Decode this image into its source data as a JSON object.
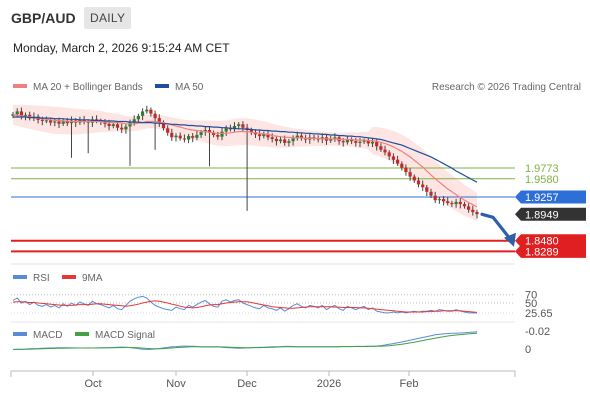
{
  "header": {
    "pair": "GBP/AUD",
    "timeframe": "DAILY",
    "timestamp": "Monday, March 2, 2026 9:15:24 AM CET"
  },
  "legend": {
    "ma20": "MA 20 + Bollinger Bands",
    "ma50": "MA 50",
    "research": "Research © 2026 Trading Central"
  },
  "colors": {
    "up": "#2e7d32",
    "down": "#c62828",
    "ma50": "#1f4e9c",
    "ma20": "#f08080",
    "band": "#fde0de",
    "green_level": "#7cb342",
    "blue_level": "#2d6fd6",
    "red_level": "#e02020",
    "rsi": "#5b8bd8",
    "signal": "#e53935",
    "macd_signal": "#43a047"
  },
  "chart_data": [
    {
      "type": "candlestick",
      "title": "GBP/AUD",
      "x_ticks": [
        "Oct",
        "Nov",
        "Dec",
        "2026",
        "Feb"
      ],
      "levels": [
        {
          "value": 1.9773,
          "label": "1.9773",
          "kind": "resistance"
        },
        {
          "value": 1.958,
          "label": "1.9580",
          "kind": "resistance"
        },
        {
          "value": 1.9257,
          "label": "1.9257",
          "kind": "pivot"
        },
        {
          "value": 1.8949,
          "label": "1.8949",
          "kind": "last"
        },
        {
          "value": 1.848,
          "label": "1.8480",
          "kind": "target"
        },
        {
          "value": 1.8289,
          "label": "1.8289",
          "kind": "target"
        }
      ],
      "ylim": [
        1.81,
        2.1
      ],
      "closes": [
        2.073,
        2.078,
        2.07,
        2.072,
        2.066,
        2.069,
        2.063,
        2.061,
        2.062,
        2.058,
        2.06,
        2.056,
        2.061,
        2.057,
        2.062,
        2.058,
        2.063,
        2.06,
        2.058,
        2.064,
        2.061,
        2.059,
        2.056,
        2.052,
        2.055,
        2.049,
        2.046,
        2.051,
        2.058,
        2.064,
        2.07,
        2.078,
        2.081,
        2.074,
        2.066,
        2.058,
        2.048,
        2.04,
        2.032,
        2.035,
        2.03,
        2.028,
        2.034,
        2.031,
        2.036,
        2.041,
        2.045,
        2.04,
        2.036,
        2.033,
        2.042,
        2.049,
        2.046,
        2.052,
        2.055,
        2.049,
        2.045,
        2.041,
        2.037,
        2.034,
        2.038,
        2.032,
        2.029,
        2.025,
        2.028,
        2.022,
        2.025,
        2.03,
        2.035,
        2.031,
        2.028,
        2.032,
        2.03,
        2.028,
        2.032,
        2.026,
        2.029,
        2.032,
        2.025,
        2.023,
        2.028,
        2.025,
        2.022,
        2.024,
        2.026,
        2.021,
        2.024,
        2.016,
        2.01,
        2.005,
        1.998,
        1.992,
        1.985,
        1.978,
        1.97,
        1.962,
        1.955,
        1.948,
        1.943,
        1.935,
        1.928,
        1.92,
        1.922,
        1.918,
        1.915,
        1.913,
        1.917,
        1.913,
        1.909,
        1.903,
        1.899,
        1.895
      ],
      "ma20": [
        2.072,
        2.071,
        2.07,
        2.069,
        2.068,
        2.067,
        2.066,
        2.065,
        2.064,
        2.063,
        2.062,
        2.062,
        2.061,
        2.061,
        2.06,
        2.06,
        2.06,
        2.06,
        2.06,
        2.06,
        2.06,
        2.06,
        2.059,
        2.059,
        2.058,
        2.058,
        2.057,
        2.056,
        2.056,
        2.056,
        2.057,
        2.058,
        2.06,
        2.06,
        2.06,
        2.059,
        2.058,
        2.056,
        2.054,
        2.052,
        2.05,
        2.048,
        2.046,
        2.045,
        2.044,
        2.043,
        2.042,
        2.041,
        2.04,
        2.039,
        2.039,
        2.039,
        2.04,
        2.041,
        2.042,
        2.042,
        2.042,
        2.041,
        2.04,
        2.039,
        2.038,
        2.037,
        2.035,
        2.034,
        2.033,
        2.032,
        2.032,
        2.031,
        2.031,
        2.031,
        2.03,
        2.03,
        2.03,
        2.03,
        2.029,
        2.029,
        2.029,
        2.029,
        2.028,
        2.028,
        2.028,
        2.028,
        2.027,
        2.027,
        2.027,
        2.026,
        2.026,
        2.025,
        2.023,
        2.021,
        2.018,
        2.015,
        2.011,
        2.007,
        2.002,
        1.997,
        1.991,
        1.985,
        1.979,
        1.972,
        1.965,
        1.958,
        1.952,
        1.946,
        1.94,
        1.935,
        1.93,
        1.925,
        1.92,
        1.916,
        1.912,
        1.908
      ],
      "ma50": [
        2.068,
        2.068,
        2.068,
        2.068,
        2.067,
        2.067,
        2.067,
        2.066,
        2.066,
        2.066,
        2.065,
        2.065,
        2.065,
        2.064,
        2.064,
        2.064,
        2.063,
        2.063,
        2.063,
        2.062,
        2.062,
        2.062,
        2.061,
        2.061,
        2.061,
        2.06,
        2.06,
        2.06,
        2.059,
        2.059,
        2.059,
        2.058,
        2.058,
        2.058,
        2.057,
        2.057,
        2.056,
        2.056,
        2.055,
        2.055,
        2.054,
        2.054,
        2.053,
        2.053,
        2.052,
        2.052,
        2.051,
        2.051,
        2.05,
        2.05,
        2.049,
        2.049,
        2.048,
        2.048,
        2.047,
        2.047,
        2.046,
        2.046,
        2.045,
        2.045,
        2.044,
        2.044,
        2.043,
        2.043,
        2.042,
        2.042,
        2.041,
        2.041,
        2.04,
        2.04,
        2.039,
        2.039,
        2.038,
        2.038,
        2.037,
        2.037,
        2.036,
        2.036,
        2.035,
        2.035,
        2.034,
        2.034,
        2.033,
        2.033,
        2.032,
        2.031,
        2.03,
        2.029,
        2.028,
        2.026,
        2.024,
        2.022,
        2.02,
        2.018,
        2.015,
        2.012,
        2.009,
        2.006,
        2.003,
        2.0,
        1.997,
        1.993,
        1.989,
        1.985,
        1.981,
        1.977,
        1.972,
        1.968,
        1.964,
        1.96,
        1.956,
        1.952
      ],
      "forecast": [
        1.8949,
        1.848
      ]
    },
    {
      "type": "line",
      "title": "RSI",
      "series": [
        {
          "name": "RSI"
        },
        {
          "name": "9MA"
        }
      ],
      "levels": [
        70,
        50
      ],
      "last": "25.65",
      "ylim": [
        0,
        100
      ],
      "rsi": [
        56,
        62,
        50,
        54,
        46,
        52,
        44,
        42,
        46,
        40,
        44,
        38,
        48,
        42,
        50,
        44,
        52,
        48,
        44,
        54,
        48,
        46,
        42,
        38,
        44,
        36,
        34,
        44,
        54,
        60,
        64,
        66,
        62,
        52,
        44,
        40,
        36,
        34,
        32,
        40,
        36,
        34,
        44,
        40,
        46,
        52,
        56,
        48,
        42,
        40,
        54,
        58,
        52,
        56,
        58,
        50,
        46,
        42,
        38,
        36,
        44,
        38,
        36,
        32,
        38,
        30,
        36,
        44,
        48,
        42,
        38,
        44,
        42,
        38,
        44,
        34,
        40,
        44,
        36,
        32,
        42,
        38,
        34,
        38,
        42,
        34,
        38,
        30,
        28,
        26,
        26,
        28,
        26,
        28,
        26,
        28,
        30,
        28,
        30,
        30,
        32,
        30,
        34,
        32,
        30,
        30,
        34,
        30,
        28,
        26,
        26,
        26
      ],
      "ma9": [
        52,
        53,
        53,
        52,
        51,
        51,
        50,
        49,
        48,
        47,
        46,
        45,
        44,
        44,
        44,
        45,
        46,
        46,
        46,
        47,
        48,
        48,
        47,
        46,
        45,
        44,
        43,
        42,
        43,
        45,
        47,
        50,
        52,
        54,
        55,
        54,
        52,
        50,
        47,
        45,
        42,
        40,
        39,
        38,
        39,
        41,
        43,
        45,
        46,
        46,
        48,
        50,
        51,
        52,
        53,
        53,
        53,
        51,
        49,
        47,
        45,
        43,
        41,
        40,
        39,
        38,
        37,
        37,
        38,
        39,
        40,
        41,
        41,
        41,
        41,
        41,
        41,
        40,
        40,
        39,
        39,
        39,
        39,
        38,
        38,
        37,
        36,
        35,
        34,
        33,
        32,
        31,
        30,
        29,
        28,
        28,
        28,
        28,
        28,
        29,
        29,
        30,
        30,
        31,
        31,
        31,
        31,
        31,
        30,
        29,
        28,
        27
      ]
    },
    {
      "type": "line",
      "title": "MACD",
      "series": [
        {
          "name": "MACD"
        },
        {
          "name": "MACD Signal"
        }
      ],
      "tick_labels": [
        "0",
        "-0.02"
      ],
      "ylim": [
        -0.024,
        0.004
      ],
      "macd": [
        0.0005,
        0.0004,
        0.0002,
        0.0001,
        -0.0002,
        -0.0004,
        -0.0006,
        -0.0008,
        -0.001,
        -0.0011,
        -0.0012,
        -0.0013,
        -0.0013,
        -0.0013,
        -0.0012,
        -0.0012,
        -0.0011,
        -0.0011,
        -0.0012,
        -0.0011,
        -0.0012,
        -0.0013,
        -0.0014,
        -0.0016,
        -0.0017,
        -0.0019,
        -0.0021,
        -0.002,
        -0.0016,
        -0.001,
        -0.0004,
        0.0002,
        0.0005,
        0.0004,
        0.0,
        -0.0005,
        -0.0012,
        -0.0018,
        -0.0024,
        -0.0027,
        -0.003,
        -0.0032,
        -0.0031,
        -0.003,
        -0.0028,
        -0.0025,
        -0.0022,
        -0.0022,
        -0.0023,
        -0.0024,
        -0.002,
        -0.0016,
        -0.0014,
        -0.0011,
        -0.0009,
        -0.001,
        -0.0012,
        -0.0014,
        -0.0017,
        -0.0019,
        -0.002,
        -0.0022,
        -0.0024,
        -0.0026,
        -0.0027,
        -0.0029,
        -0.0029,
        -0.0028,
        -0.0026,
        -0.0026,
        -0.0026,
        -0.0025,
        -0.0025,
        -0.0025,
        -0.0025,
        -0.0026,
        -0.0026,
        -0.0026,
        -0.0027,
        -0.0028,
        -0.0028,
        -0.0028,
        -0.0029,
        -0.0029,
        -0.0029,
        -0.003,
        -0.003,
        -0.0033,
        -0.0038,
        -0.0044,
        -0.0052,
        -0.006,
        -0.0069,
        -0.0078,
        -0.0088,
        -0.0098,
        -0.0108,
        -0.0118,
        -0.0128,
        -0.0138,
        -0.0148,
        -0.0158,
        -0.0163,
        -0.0168,
        -0.0172,
        -0.0176,
        -0.0176,
        -0.0178,
        -0.018,
        -0.0184,
        -0.0188,
        -0.0192
      ],
      "signal": [
        0.0006,
        0.0005,
        0.0004,
        0.0003,
        0.0002,
        0.0,
        -0.0001,
        -0.0003,
        -0.0004,
        -0.0006,
        -0.0007,
        -0.0008,
        -0.0009,
        -0.001,
        -0.001,
        -0.0011,
        -0.0011,
        -0.0011,
        -0.0011,
        -0.0011,
        -0.0011,
        -0.0012,
        -0.0012,
        -0.0013,
        -0.0014,
        -0.0015,
        -0.0016,
        -0.0017,
        -0.0017,
        -0.0015,
        -0.0013,
        -0.001,
        -0.0007,
        -0.0004,
        -0.0003,
        -0.0003,
        -0.0005,
        -0.0008,
        -0.0011,
        -0.0015,
        -0.0018,
        -0.0021,
        -0.0023,
        -0.0025,
        -0.0026,
        -0.0026,
        -0.0025,
        -0.0025,
        -0.0024,
        -0.0024,
        -0.0023,
        -0.0022,
        -0.002,
        -0.0018,
        -0.0016,
        -0.0015,
        -0.0014,
        -0.0014,
        -0.0015,
        -0.0016,
        -0.0017,
        -0.0018,
        -0.002,
        -0.0021,
        -0.0023,
        -0.0024,
        -0.0025,
        -0.0026,
        -0.0026,
        -0.0026,
        -0.0026,
        -0.0026,
        -0.0026,
        -0.0026,
        -0.0026,
        -0.0026,
        -0.0026,
        -0.0026,
        -0.0026,
        -0.0027,
        -0.0027,
        -0.0027,
        -0.0028,
        -0.0028,
        -0.0028,
        -0.0029,
        -0.0029,
        -0.003,
        -0.0031,
        -0.0033,
        -0.0037,
        -0.0041,
        -0.0047,
        -0.0053,
        -0.006,
        -0.0068,
        -0.0076,
        -0.0084,
        -0.0093,
        -0.0102,
        -0.0111,
        -0.012,
        -0.0129,
        -0.0137,
        -0.0144,
        -0.015,
        -0.0156,
        -0.016,
        -0.0164,
        -0.0168,
        -0.0172,
        -0.0176
      ]
    }
  ]
}
